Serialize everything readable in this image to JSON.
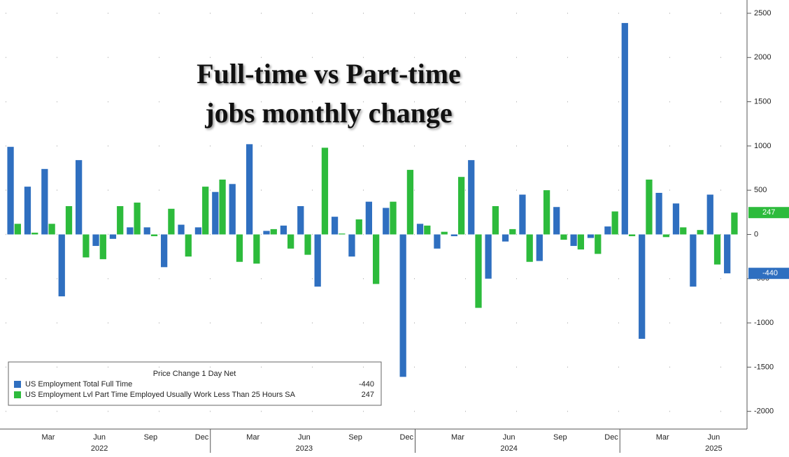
{
  "chart_data": {
    "type": "grouped-bar",
    "title_lines": [
      "Full-time vs  Part-time",
      "jobs monthly change"
    ],
    "categories": [
      null,
      null,
      "Mar",
      null,
      null,
      "Jun",
      null,
      null,
      "Sep",
      null,
      null,
      "Dec",
      null,
      null,
      "Mar",
      null,
      null,
      "Jun",
      null,
      null,
      "Sep",
      null,
      null,
      "Dec",
      null,
      null,
      "Mar",
      null,
      null,
      "Jun",
      null,
      null,
      "Sep",
      null,
      null,
      "Dec",
      null,
      null,
      "Mar",
      null,
      null,
      "Jun",
      null
    ],
    "years": [
      "2022",
      "2023",
      "2024",
      "2025"
    ],
    "series": [
      {
        "name": "US Employment Total Full Time",
        "color": "#2f6fc0",
        "values": [
          990,
          540,
          740,
          -700,
          840,
          -130,
          -50,
          80,
          80,
          -370,
          110,
          80,
          480,
          570,
          1020,
          40,
          100,
          320,
          -590,
          200,
          -250,
          370,
          300,
          -1610,
          120,
          -160,
          -20,
          840,
          -500,
          -80,
          450,
          -300,
          310,
          -130,
          -40,
          90,
          2390,
          -1180,
          470,
          350,
          -590,
          450,
          -440
        ]
      },
      {
        "name": "US Employment Lvl Part Time Employed Usually Work Less Than 25 Hours SA",
        "color": "#2dbb3c",
        "values": [
          120,
          20,
          120,
          320,
          -260,
          -280,
          320,
          360,
          -20,
          290,
          -250,
          540,
          620,
          -310,
          -330,
          60,
          -160,
          -230,
          980,
          10,
          170,
          -560,
          370,
          730,
          100,
          30,
          650,
          -830,
          320,
          60,
          -310,
          500,
          -60,
          -170,
          -220,
          260,
          -20,
          620,
          -30,
          80,
          50,
          -340,
          247
        ]
      }
    ],
    "legend_header": "Price Change 1 Day Net",
    "ylim": [
      -2200,
      2650
    ],
    "yticks": [
      2500,
      2000,
      1500,
      1000,
      500,
      0,
      -500,
      -1000,
      -1500,
      -2000
    ],
    "grid": true
  }
}
